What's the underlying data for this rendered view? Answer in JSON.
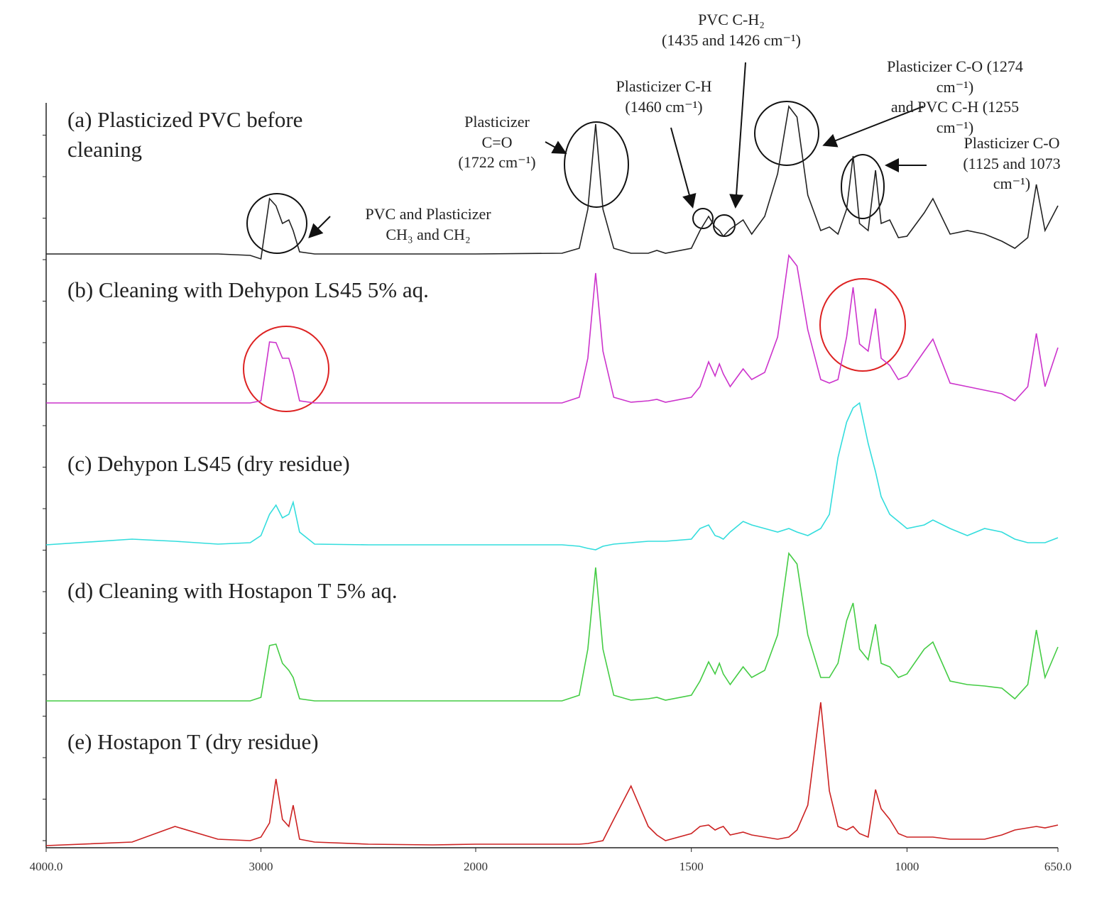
{
  "chart_data": {
    "type": "line",
    "x": [
      4000,
      3600,
      3400,
      3200,
      3050,
      3000,
      2960,
      2930,
      2900,
      2870,
      2850,
      2820,
      2750,
      2500,
      2200,
      2000,
      1800,
      1760,
      1740,
      1722,
      1705,
      1680,
      1640,
      1600,
      1580,
      1560,
      1500,
      1480,
      1460,
      1445,
      1435,
      1426,
      1410,
      1380,
      1360,
      1330,
      1300,
      1274,
      1255,
      1230,
      1200,
      1180,
      1160,
      1140,
      1125,
      1110,
      1090,
      1073,
      1060,
      1040,
      1020,
      1000,
      960,
      940,
      900,
      860,
      820,
      780,
      750,
      720,
      700,
      680,
      650
    ],
    "xlim": [
      4000,
      650
    ],
    "xbreak": 2000,
    "xticks": [
      {
        "value": 4000,
        "label": "4000.0"
      },
      3000,
      2000,
      1500,
      1000,
      {
        "value": 650,
        "label": "650.0"
      }
    ],
    "ylim": [
      0,
      1050
    ],
    "series": [
      {
        "name": "(a)  Plasticized PVC before cleaning",
        "color": "#222222",
        "values": [
          837,
          837,
          837,
          837,
          835,
          830,
          915,
          905,
          880,
          885,
          870,
          840,
          837,
          837,
          837,
          837,
          838,
          845,
          900,
          1020,
          900,
          845,
          838,
          838,
          842,
          838,
          845,
          870,
          890,
          875,
          870,
          862,
          872,
          885,
          865,
          890,
          950,
          1045,
          1030,
          920,
          870,
          875,
          865,
          900,
          975,
          880,
          870,
          955,
          880,
          885,
          860,
          862,
          895,
          915,
          865,
          870,
          865,
          855,
          845,
          860,
          935,
          870,
          905
        ]
      },
      {
        "name": "(b) Cleaning with Dehypon LS45 5% aq.",
        "color": "#cc33cc",
        "values": [
          627,
          627,
          627,
          627,
          627,
          630,
          713,
          712,
          690,
          690,
          670,
          630,
          627,
          627,
          627,
          627,
          627,
          635,
          690,
          810,
          700,
          635,
          628,
          630,
          632,
          628,
          635,
          650,
          685,
          665,
          682,
          668,
          650,
          675,
          660,
          670,
          720,
          835,
          820,
          730,
          660,
          655,
          660,
          720,
          790,
          710,
          700,
          760,
          690,
          680,
          660,
          665,
          700,
          717,
          655,
          650,
          645,
          640,
          630,
          650,
          725,
          650,
          705
        ]
      },
      {
        "name": "(c) Dehypon LS45 (dry residue)",
        "color": "#33dddd",
        "values": [
          427,
          435,
          432,
          428,
          430,
          440,
          470,
          483,
          465,
          470,
          487,
          445,
          428,
          427,
          427,
          427,
          427,
          425,
          422,
          420,
          425,
          428,
          430,
          432,
          432,
          432,
          435,
          450,
          455,
          440,
          438,
          435,
          445,
          460,
          455,
          450,
          445,
          450,
          445,
          440,
          450,
          470,
          550,
          600,
          620,
          627,
          570,
          530,
          495,
          470,
          460,
          450,
          455,
          462,
          450,
          440,
          450,
          445,
          435,
          430,
          430,
          430,
          437
        ]
      },
      {
        "name": "(d) Cleaning with Hostapon T  5% aq.",
        "color": "#44cc44",
        "values": [
          207,
          207,
          207,
          207,
          207,
          212,
          285,
          287,
          260,
          250,
          240,
          210,
          207,
          207,
          207,
          207,
          207,
          215,
          280,
          395,
          280,
          215,
          208,
          210,
          212,
          208,
          215,
          235,
          262,
          245,
          260,
          245,
          230,
          255,
          240,
          250,
          300,
          415,
          400,
          300,
          240,
          240,
          260,
          320,
          345,
          280,
          265,
          315,
          260,
          255,
          240,
          245,
          280,
          290,
          235,
          230,
          228,
          225,
          210,
          230,
          307,
          240,
          283
        ]
      },
      {
        "name": "(e) Hostapon T (dry residue)",
        "color": "#cc2222",
        "values": [
          3,
          8,
          30,
          12,
          10,
          15,
          35,
          97,
          40,
          30,
          60,
          12,
          8,
          5,
          4,
          5,
          5,
          5,
          6,
          8,
          10,
          40,
          87,
          30,
          18,
          10,
          20,
          30,
          32,
          25,
          28,
          30,
          18,
          22,
          18,
          15,
          12,
          15,
          25,
          60,
          205,
          80,
          30,
          25,
          30,
          20,
          15,
          82,
          55,
          40,
          20,
          15,
          15,
          15,
          12,
          12,
          12,
          18,
          25,
          28,
          30,
          28,
          32
        ]
      }
    ],
    "annotations": [
      "Plasticizer\nC=O\n(1722 cm⁻¹)",
      "PVC and Plasticizer\nCH₃ and CH₂",
      "Plasticizer C-H\n(1460 cm⁻¹)",
      "PVC C-H₂\n(1435 and 1426 cm⁻¹)",
      "Plasticizer C-O (1274 cm⁻¹)\nand PVC C-H  (1255 cm⁻¹)",
      "Plasticizer  C-O\n(1125 and 1073 cm⁻¹)"
    ]
  }
}
